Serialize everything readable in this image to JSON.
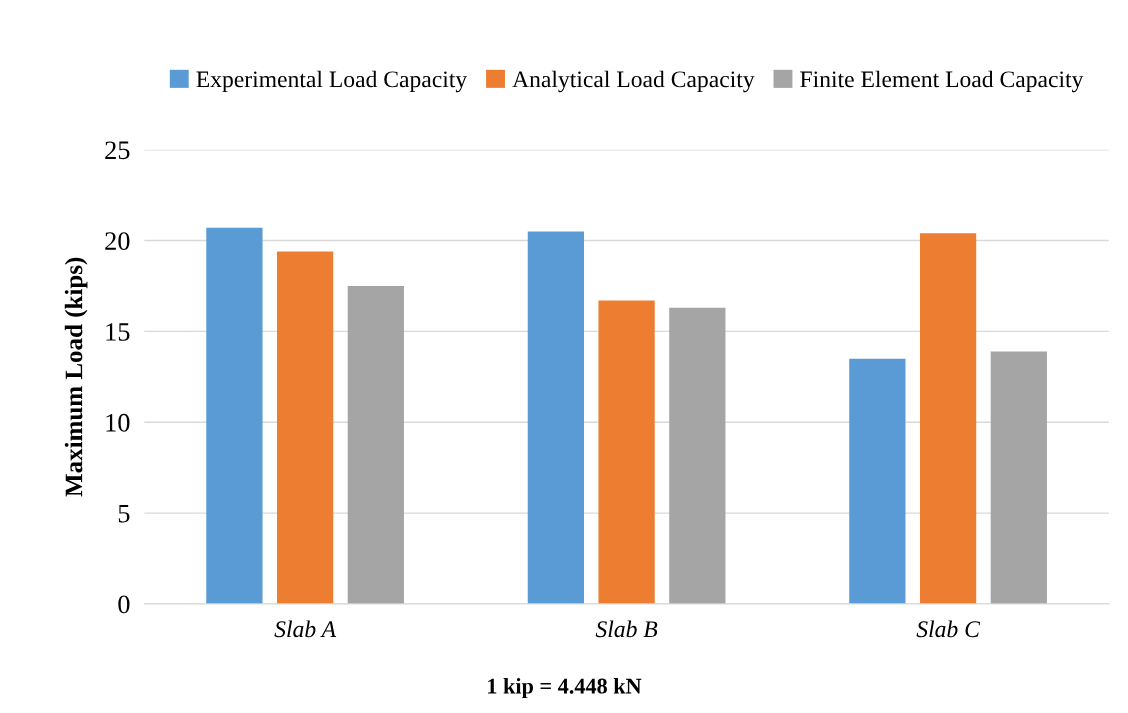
{
  "chart_data": {
    "type": "bar",
    "ylabel": "Maximum Load (kips)",
    "categories": [
      "Slab A",
      "Slab B",
      "Slab C"
    ],
    "series": [
      {
        "name": "Experimental Load Capacity",
        "color": "#5b9bd5",
        "values": [
          20.7,
          20.5,
          13.5
        ]
      },
      {
        "name": "Analytical Load Capacity",
        "color": "#ed7d31",
        "values": [
          19.4,
          16.7,
          20.4
        ]
      },
      {
        "name": "Finite Element Load Capacity",
        "color": "#a5a5a5",
        "values": [
          17.5,
          16.3,
          13.9
        ]
      }
    ],
    "ylim": [
      0,
      25
    ],
    "yticks": [
      0,
      5,
      10,
      15,
      20,
      25
    ],
    "grid": "y",
    "legend": "top",
    "annotations": [
      "1 kip = 4.448 kN"
    ]
  }
}
